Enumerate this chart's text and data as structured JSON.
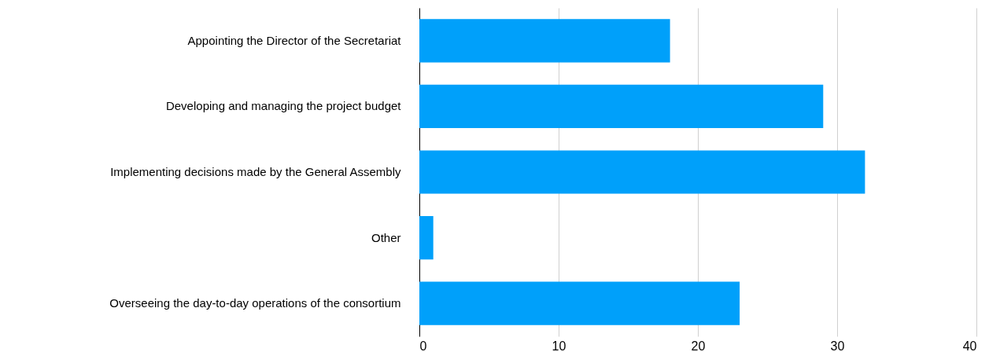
{
  "chart_data": {
    "type": "bar",
    "orientation": "horizontal",
    "categories": [
      "Appointing the Director of the Secretariat",
      "Developing and managing the project budget",
      "Implementing decisions made by the General Assembly",
      "Other",
      "Overseeing the day-to-day operations of the consortium"
    ],
    "values": [
      18,
      29,
      32,
      1,
      23
    ],
    "color": "#00a0fa",
    "xlim": [
      0,
      40
    ],
    "xticks": [
      0,
      10,
      20,
      30,
      40
    ],
    "grid": "x"
  }
}
